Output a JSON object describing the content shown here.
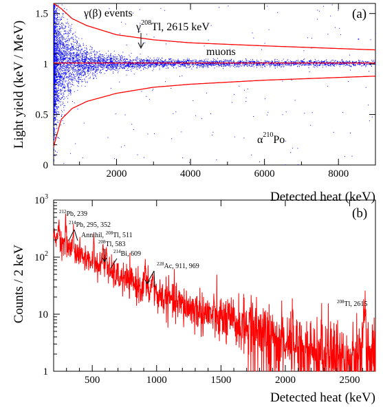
{
  "colors": {
    "points": "#0000ff",
    "curves": "#ff0000",
    "spectrum": "#ff0000",
    "axes": "#000000"
  },
  "chart_data": [
    {
      "type": "scatter",
      "panel_label": "(a)",
      "xlabel": "Detected heat (keV)",
      "ylabel": "Light yield (keV / MeV)",
      "xlim": [
        300,
        9000
      ],
      "ylim": [
        0,
        1.6
      ],
      "xticks": [
        "2000",
        "4000",
        "6000",
        "8000"
      ],
      "yticks": [
        "0",
        "0.5",
        "1",
        "1.5"
      ],
      "band_center": 1.01,
      "upper_curve": {
        "x": [
          300,
          500,
          800,
          1200,
          2000,
          3000,
          4000,
          6000,
          9000
        ],
        "y": [
          1.6,
          1.55,
          1.45,
          1.38,
          1.29,
          1.24,
          1.21,
          1.18,
          1.14
        ]
      },
      "lower_curve": {
        "x": [
          300,
          500,
          800,
          1200,
          2000,
          3000,
          4000,
          6000,
          9000
        ],
        "y": [
          0.18,
          0.45,
          0.56,
          0.63,
          0.71,
          0.77,
          0.8,
          0.84,
          0.88
        ]
      },
      "annotations": {
        "gamma_beta": "γ(β) events",
        "gamma_tl_prefix": "γ",
        "gamma_tl_mass": "208",
        "gamma_tl_text": "Tl, 2615 keV",
        "muons": "muons",
        "alpha_prefix": "α",
        "alpha_mass": "210",
        "alpha_text": "Po"
      }
    },
    {
      "type": "line",
      "panel_label": "(b)",
      "xlabel": "Detected heat (keV)",
      "ylabel": "Counts / 2 keV",
      "xlim": [
        200,
        2700
      ],
      "ylim": [
        1,
        1000
      ],
      "yscale": "log",
      "xticks": [
        "500",
        "1000",
        "1500",
        "2000",
        "2500"
      ],
      "yticks": [
        {
          "base": "1"
        },
        {
          "base": "10"
        },
        {
          "base": "10",
          "exp": "2"
        },
        {
          "base": "10",
          "exp": "3"
        }
      ],
      "continuum": {
        "x": [
          200,
          240,
          300,
          400,
          500,
          600,
          700,
          800,
          1000,
          1200,
          1500,
          1800,
          2000,
          2200,
          2400,
          2600,
          2700
        ],
        "y": [
          220,
          200,
          150,
          110,
          80,
          60,
          45,
          36,
          22,
          14,
          8,
          5,
          3.6,
          2.7,
          2.1,
          1.7,
          1.5
        ]
      },
      "peaks": [
        {
          "energy": 239,
          "height": 330
        },
        {
          "energy": 295,
          "height": 210
        },
        {
          "energy": 352,
          "height": 180
        },
        {
          "energy": 511,
          "height": 105
        },
        {
          "energy": 583,
          "height": 100
        },
        {
          "energy": 609,
          "height": 95
        },
        {
          "energy": 911,
          "height": 30
        },
        {
          "energy": 969,
          "height": 25
        },
        {
          "energy": 2615,
          "height": 11
        }
      ],
      "annotations": {
        "pb212": {
          "mass": "212",
          "text": "Pb, 239"
        },
        "pb214": {
          "mass": "214",
          "text": "Pb, 295, 352"
        },
        "annihil": {
          "text": "Annihil, ",
          "mass": "208",
          "text2": "Tl, 511"
        },
        "tl583": {
          "mass": "208",
          "text": "Tl, 583"
        },
        "bi214": {
          "mass": "214",
          "text": "Bi, 609"
        },
        "ac228": {
          "mass": "228",
          "text": "Ac, 911, 969"
        },
        "tl2615": {
          "mass": "208",
          "text": "Tl, 2615"
        }
      }
    }
  ]
}
